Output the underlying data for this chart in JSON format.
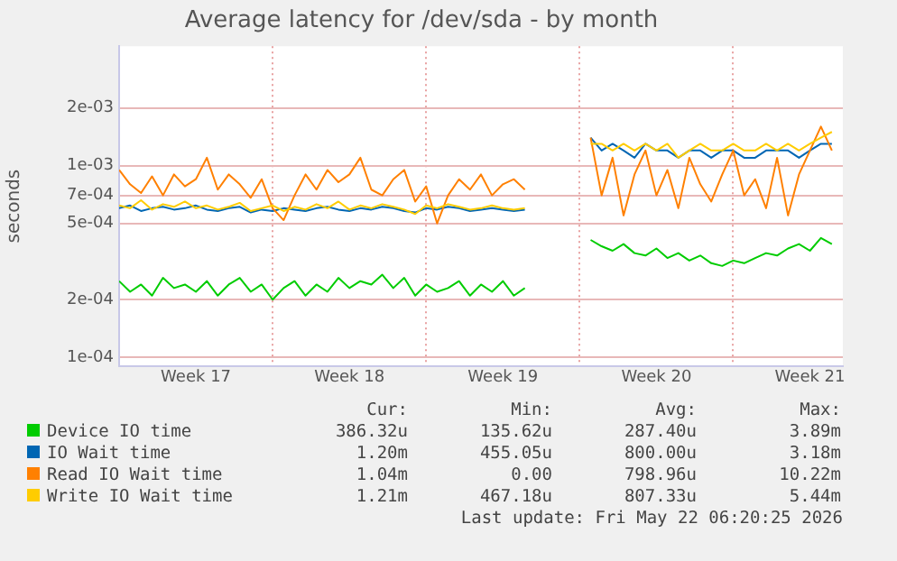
{
  "chart_data": {
    "type": "line",
    "title": "Average latency for /dev/sda - by month",
    "ylabel": "seconds",
    "x": [
      "2026-04-20T00:00",
      "2026-04-20T12:00",
      "2026-04-21T00:00",
      "2026-04-21T12:00",
      "2026-04-22T00:00",
      "2026-04-22T12:00",
      "2026-04-23T00:00",
      "2026-04-23T12:00",
      "2026-04-24T00:00",
      "2026-04-24T12:00",
      "2026-04-25T00:00",
      "2026-04-25T12:00",
      "2026-04-26T00:00",
      "2026-04-26T12:00",
      "2026-04-27T00:00",
      "2026-04-27T12:00",
      "2026-04-28T00:00",
      "2026-04-28T12:00",
      "2026-04-29T00:00",
      "2026-04-29T12:00",
      "2026-04-30T00:00",
      "2026-04-30T12:00",
      "2026-05-01T00:00",
      "2026-05-01T12:00",
      "2026-05-02T00:00",
      "2026-05-02T12:00",
      "2026-05-03T00:00",
      "2026-05-03T12:00",
      "2026-05-04T00:00",
      "2026-05-04T12:00",
      "2026-05-05T00:00",
      "2026-05-05T12:00",
      "2026-05-06T00:00",
      "2026-05-06T12:00",
      "2026-05-07T00:00",
      "2026-05-07T12:00",
      "2026-05-08T00:00",
      "2026-05-08T12:00",
      "2026-05-09T00:00",
      "2026-05-09T12:00",
      "2026-05-10T00:00",
      "2026-05-10T12:00",
      "2026-05-11T00:00",
      "2026-05-11T12:00",
      "2026-05-12T00:00",
      "2026-05-12T12:00",
      "2026-05-13T00:00",
      "2026-05-13T12:00",
      "2026-05-14T00:00",
      "2026-05-14T12:00",
      "2026-05-15T00:00",
      "2026-05-15T12:00",
      "2026-05-16T00:00",
      "2026-05-16T12:00",
      "2026-05-17T00:00",
      "2026-05-17T12:00",
      "2026-05-18T00:00",
      "2026-05-18T12:00",
      "2026-05-19T00:00",
      "2026-05-19T12:00",
      "2026-05-20T00:00",
      "2026-05-20T12:00",
      "2026-05-21T00:00",
      "2026-05-21T12:00",
      "2026-05-22T00:00",
      "2026-05-22T12:00"
    ],
    "series": [
      {
        "name": "Device IO time",
        "color": "#00cc00",
        "values": [
          0.00025,
          0.00022,
          0.00024,
          0.00021,
          0.00026,
          0.00023,
          0.00024,
          0.00022,
          0.00025,
          0.00021,
          0.00024,
          0.00026,
          0.00022,
          0.00024,
          0.0002,
          0.00023,
          0.00025,
          0.00021,
          0.00024,
          0.00022,
          0.00026,
          0.00023,
          0.00025,
          0.00024,
          0.00027,
          0.00023,
          0.00026,
          0.00021,
          0.00024,
          0.00022,
          0.00023,
          0.00025,
          0.00021,
          0.00024,
          0.00022,
          0.00025,
          0.00021,
          0.00023,
          null,
          null,
          null,
          null,
          null,
          0.00041,
          0.00038,
          0.00036,
          0.00039,
          0.00035,
          0.00034,
          0.00037,
          0.00033,
          0.00035,
          0.00032,
          0.00034,
          0.00031,
          0.0003,
          0.00032,
          0.00031,
          0.00033,
          0.00035,
          0.00034,
          0.00037,
          0.00039,
          0.00036,
          0.00042,
          0.00039
        ]
      },
      {
        "name": "IO Wait time",
        "color": "#0066b3",
        "values": [
          0.0006,
          0.00062,
          0.00058,
          0.0006,
          0.00061,
          0.00059,
          0.0006,
          0.00062,
          0.00059,
          0.00058,
          0.0006,
          0.00061,
          0.00057,
          0.00059,
          0.00058,
          0.0006,
          0.00059,
          0.00058,
          0.0006,
          0.00061,
          0.00059,
          0.00058,
          0.0006,
          0.00059,
          0.00061,
          0.0006,
          0.00058,
          0.00057,
          0.0006,
          0.00059,
          0.00061,
          0.0006,
          0.00058,
          0.00059,
          0.0006,
          0.00059,
          0.00058,
          0.00059,
          null,
          null,
          null,
          null,
          null,
          0.0014,
          0.0012,
          0.0013,
          0.0012,
          0.0011,
          0.0013,
          0.0012,
          0.0012,
          0.0011,
          0.0012,
          0.0012,
          0.0011,
          0.0012,
          0.0012,
          0.0011,
          0.0011,
          0.0012,
          0.0012,
          0.0012,
          0.0011,
          0.0012,
          0.0013,
          0.0013
        ]
      },
      {
        "name": "Read IO Wait time",
        "color": "#ff8000",
        "values": [
          0.00095,
          0.0008,
          0.00072,
          0.00088,
          0.0007,
          0.0009,
          0.00078,
          0.00085,
          0.0011,
          0.00075,
          0.0009,
          0.0008,
          0.00068,
          0.00085,
          0.0006,
          0.00052,
          0.0007,
          0.0009,
          0.00075,
          0.00095,
          0.00082,
          0.0009,
          0.0011,
          0.00075,
          0.0007,
          0.00085,
          0.00095,
          0.00065,
          0.00078,
          0.0005,
          0.0007,
          0.00085,
          0.00075,
          0.0009,
          0.0007,
          0.0008,
          0.00085,
          0.00075,
          null,
          null,
          null,
          null,
          null,
          0.0014,
          0.0007,
          0.0011,
          0.00055,
          0.0009,
          0.0012,
          0.0007,
          0.00095,
          0.0006,
          0.0011,
          0.0008,
          0.00065,
          0.0009,
          0.0012,
          0.0007,
          0.00085,
          0.0006,
          0.0011,
          0.00055,
          0.0009,
          0.0012,
          0.0016,
          0.0012
        ]
      },
      {
        "name": "Write IO Wait time",
        "color": "#ffcc00",
        "values": [
          0.00062,
          0.0006,
          0.00066,
          0.00059,
          0.00063,
          0.00061,
          0.00065,
          0.0006,
          0.00062,
          0.00059,
          0.00061,
          0.00064,
          0.00058,
          0.0006,
          0.00062,
          0.00058,
          0.00061,
          0.00059,
          0.00063,
          0.0006,
          0.00065,
          0.00059,
          0.00062,
          0.0006,
          0.00063,
          0.00061,
          0.00059,
          0.00056,
          0.00062,
          0.0006,
          0.00063,
          0.00061,
          0.00059,
          0.0006,
          0.00062,
          0.0006,
          0.00059,
          0.0006,
          null,
          null,
          null,
          null,
          null,
          0.0013,
          0.0013,
          0.0012,
          0.0013,
          0.0012,
          0.0013,
          0.0012,
          0.0013,
          0.0011,
          0.0012,
          0.0013,
          0.0012,
          0.0012,
          0.0013,
          0.0012,
          0.0012,
          0.0013,
          0.0012,
          0.0013,
          0.0012,
          0.0013,
          0.0014,
          0.0015
        ]
      }
    ],
    "log": "y",
    "grid": true,
    "legend": "bottom",
    "marker": "none",
    "xlim": [
      "2026-04-20T00:00",
      "2026-05-23T00:00"
    ],
    "xticks": [
      {
        "value": "2026-04-23T12:00",
        "label": "Week 17"
      },
      {
        "value": "2026-04-27T00:00",
        "label": null
      },
      {
        "value": "2026-04-30T12:00",
        "label": "Week 18"
      },
      {
        "value": "2026-05-04T00:00",
        "label": null
      },
      {
        "value": "2026-05-07T12:00",
        "label": "Week 19"
      },
      {
        "value": "2026-05-11T00:00",
        "label": null
      },
      {
        "value": "2026-05-14T12:00",
        "label": "Week 20"
      },
      {
        "value": "2026-05-18T00:00",
        "label": null
      },
      {
        "value": "2026-05-21T12:00",
        "label": "Week 21"
      }
    ],
    "ylim": [
      9e-05,
      0.0042
    ],
    "yticks": [
      {
        "value": 0.0001,
        "label": "1e-04"
      },
      {
        "value": 0.0002,
        "label": "2e-04"
      },
      {
        "value": 0.0005,
        "label": "5e-04"
      },
      {
        "value": 0.0007,
        "label": "7e-04"
      },
      {
        "value": 0.001,
        "label": "1e-03"
      },
      {
        "value": 0.002,
        "label": "2e-03"
      }
    ],
    "annotations": [
      "Cur:",
      "Min:",
      "Avg:",
      "Max:",
      "386.32u",
      "135.62u",
      "287.40u",
      "3.89m",
      "1.20m",
      "455.05u",
      "800.00u",
      "3.18m",
      "1.04m",
      "0.00",
      "798.96u",
      "10.22m",
      "1.21m",
      "467.18u",
      "807.33u",
      "5.44m",
      "Last update: Fri May 22 06:20:25 2026"
    ]
  }
}
